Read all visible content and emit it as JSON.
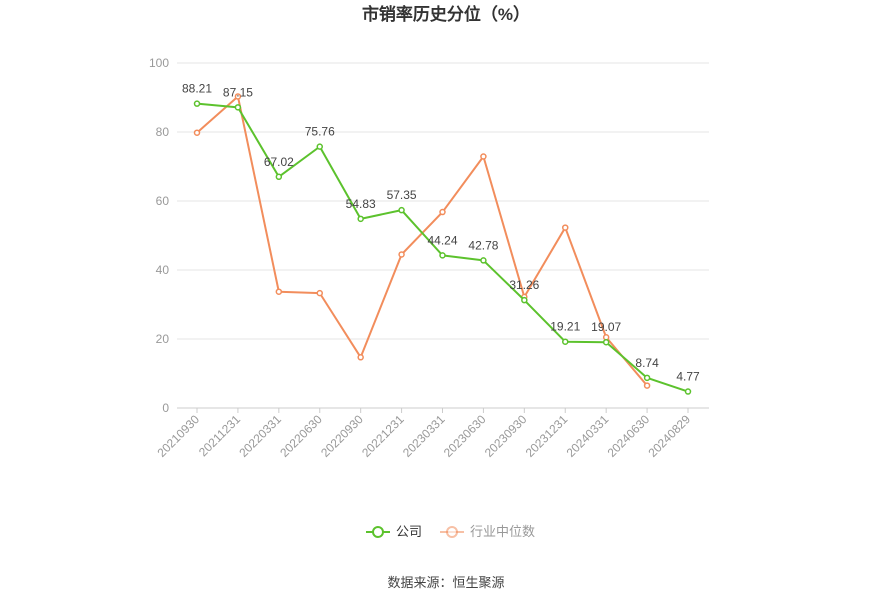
{
  "chart_data": {
    "type": "line",
    "title": "市销率历史分位（%）",
    "categories": [
      "20210930",
      "20211231",
      "20220331",
      "20220630",
      "20220930",
      "20221231",
      "20230331",
      "20230630",
      "20230930",
      "20231231",
      "20240331",
      "20240630",
      "20240829"
    ],
    "series": [
      {
        "name": "公司",
        "color": "#5cc22d",
        "values": [
          88.21,
          87.15,
          67.02,
          75.76,
          54.83,
          57.35,
          44.24,
          42.78,
          31.26,
          19.21,
          19.07,
          8.74,
          4.77
        ],
        "labels": [
          "88.21",
          "87.15",
          "67.02",
          "75.76",
          "54.83",
          "57.35",
          "44.24",
          "42.78",
          "31.26",
          "19.21",
          "19.07",
          "8.74",
          "4.77"
        ]
      },
      {
        "name": "行业中位数",
        "color": "#f28d5c",
        "values": [
          79.8,
          90.3,
          33.7,
          33.3,
          14.7,
          44.5,
          56.8,
          72.9,
          32.2,
          52.3,
          20.5,
          6.5,
          null
        ]
      }
    ],
    "yticks": [
      0,
      20,
      40,
      60,
      80,
      100
    ],
    "ylim": [
      0,
      100
    ],
    "legend_position": "bottom-center",
    "grid": true
  },
  "footer": {
    "source": "数据来源：恒生聚源"
  }
}
